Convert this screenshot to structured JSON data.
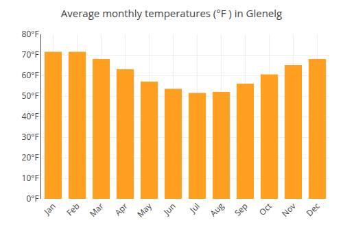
{
  "chart_data": {
    "type": "bar",
    "title": "Average monthly temperatures (°F ) in Glenelg",
    "categories": [
      "Jan",
      "Feb",
      "Mar",
      "Apr",
      "May",
      "Jun",
      "Jul",
      "Aug",
      "Sep",
      "Oct",
      "Nov",
      "Dec"
    ],
    "values": [
      71.5,
      71.5,
      68.0,
      63.0,
      57.0,
      53.5,
      51.5,
      52.0,
      56.0,
      60.5,
      65.0,
      68.0
    ],
    "color": "#FFA020",
    "ylim": [
      0,
      80
    ],
    "yticks": [
      {
        "value": 0,
        "label": "0°F"
      },
      {
        "value": 10,
        "label": "10°F"
      },
      {
        "value": 20,
        "label": "20°F"
      },
      {
        "value": 30,
        "label": "30°F"
      },
      {
        "value": 40,
        "label": "40°F"
      },
      {
        "value": 50,
        "label": "50°F"
      },
      {
        "value": 60,
        "label": "60°F"
      },
      {
        "value": 70,
        "label": "70°F"
      },
      {
        "value": 80,
        "label": "80°F"
      }
    ],
    "grid": true
  }
}
